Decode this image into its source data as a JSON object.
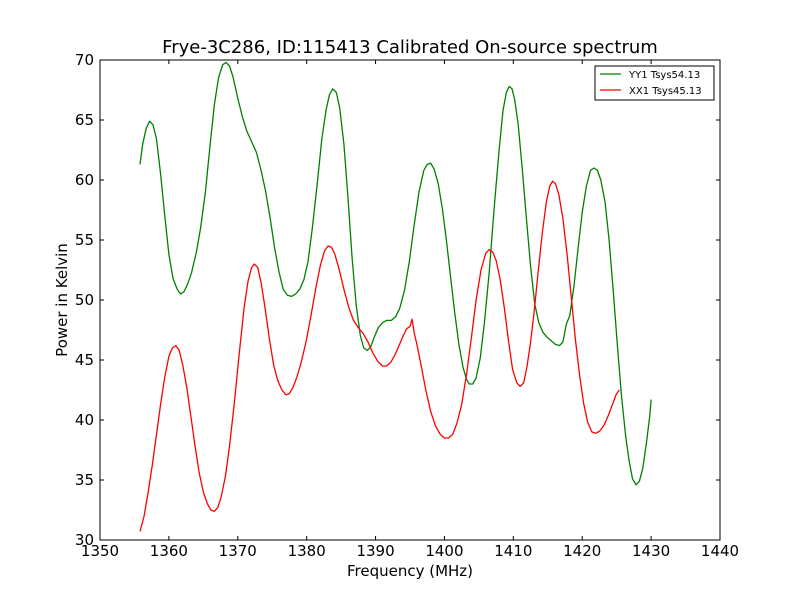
{
  "chart_data": {
    "type": "line",
    "title": "Frye-3C286, ID:115413 Calibrated On-source spectrum",
    "xlabel": "Frequency (MHz)",
    "ylabel": "Power in Kelvin",
    "xlim": [
      1350,
      1440
    ],
    "ylim": [
      30,
      70
    ],
    "xticks": [
      1350,
      1360,
      1370,
      1380,
      1390,
      1400,
      1410,
      1420,
      1430,
      1440
    ],
    "yticks": [
      30,
      35,
      40,
      45,
      50,
      55,
      60,
      65,
      70
    ],
    "grid": false,
    "legend_position": "top-right",
    "series": [
      {
        "name": "YY1 Tsys54.13",
        "color": "#008000",
        "points": [
          [
            1355.8,
            61.3
          ],
          [
            1356.2,
            63.0
          ],
          [
            1356.7,
            64.3
          ],
          [
            1357.2,
            64.9
          ],
          [
            1357.7,
            64.6
          ],
          [
            1358.2,
            63.4
          ],
          [
            1358.8,
            60.5
          ],
          [
            1359.4,
            57.0
          ],
          [
            1360.0,
            53.8
          ],
          [
            1360.6,
            51.8
          ],
          [
            1361.2,
            50.9
          ],
          [
            1361.7,
            50.5
          ],
          [
            1362.2,
            50.7
          ],
          [
            1362.7,
            51.3
          ],
          [
            1363.3,
            52.3
          ],
          [
            1364.0,
            54.0
          ],
          [
            1364.6,
            56.0
          ],
          [
            1365.3,
            59.0
          ],
          [
            1366.0,
            63.0
          ],
          [
            1366.6,
            66.3
          ],
          [
            1367.2,
            68.5
          ],
          [
            1367.8,
            69.6
          ],
          [
            1368.3,
            69.8
          ],
          [
            1368.8,
            69.5
          ],
          [
            1369.3,
            68.6
          ],
          [
            1370.0,
            66.8
          ],
          [
            1370.7,
            65.2
          ],
          [
            1371.3,
            64.1
          ],
          [
            1372.0,
            63.2
          ],
          [
            1372.7,
            62.3
          ],
          [
            1373.3,
            61.0
          ],
          [
            1374.0,
            59.2
          ],
          [
            1374.7,
            56.8
          ],
          [
            1375.3,
            54.5
          ],
          [
            1376.0,
            52.3
          ],
          [
            1376.6,
            50.9
          ],
          [
            1377.2,
            50.4
          ],
          [
            1377.8,
            50.3
          ],
          [
            1378.4,
            50.5
          ],
          [
            1379.0,
            50.9
          ],
          [
            1379.6,
            51.7
          ],
          [
            1380.2,
            53.2
          ],
          [
            1380.8,
            55.9
          ],
          [
            1381.5,
            59.5
          ],
          [
            1382.2,
            63.4
          ],
          [
            1382.8,
            65.8
          ],
          [
            1383.3,
            67.1
          ],
          [
            1383.8,
            67.6
          ],
          [
            1384.3,
            67.3
          ],
          [
            1384.8,
            66.0
          ],
          [
            1385.4,
            63.0
          ],
          [
            1386.0,
            58.5
          ],
          [
            1386.6,
            53.5
          ],
          [
            1387.2,
            49.5
          ],
          [
            1387.8,
            47.0
          ],
          [
            1388.3,
            46.0
          ],
          [
            1388.8,
            45.8
          ],
          [
            1389.3,
            46.1
          ],
          [
            1389.8,
            46.9
          ],
          [
            1390.4,
            47.7
          ],
          [
            1391.0,
            48.1
          ],
          [
            1391.6,
            48.3
          ],
          [
            1392.3,
            48.3
          ],
          [
            1392.9,
            48.6
          ],
          [
            1393.5,
            49.3
          ],
          [
            1394.2,
            50.8
          ],
          [
            1394.9,
            53.2
          ],
          [
            1395.6,
            56.2
          ],
          [
            1396.3,
            59.0
          ],
          [
            1397.0,
            60.8
          ],
          [
            1397.5,
            61.3
          ],
          [
            1398.0,
            61.4
          ],
          [
            1398.5,
            60.9
          ],
          [
            1399.1,
            59.7
          ],
          [
            1399.7,
            57.6
          ],
          [
            1400.3,
            54.9
          ],
          [
            1400.9,
            51.9
          ],
          [
            1401.5,
            48.9
          ],
          [
            1402.1,
            46.3
          ],
          [
            1402.7,
            44.4
          ],
          [
            1403.2,
            43.4
          ],
          [
            1403.6,
            43.0
          ],
          [
            1404.1,
            43.0
          ],
          [
            1404.6,
            43.5
          ],
          [
            1405.2,
            45.2
          ],
          [
            1405.8,
            48.1
          ],
          [
            1406.5,
            52.3
          ],
          [
            1407.2,
            57.5
          ],
          [
            1407.9,
            62.3
          ],
          [
            1408.5,
            65.8
          ],
          [
            1409.0,
            67.3
          ],
          [
            1409.4,
            67.8
          ],
          [
            1409.8,
            67.6
          ],
          [
            1410.2,
            66.7
          ],
          [
            1410.7,
            64.6
          ],
          [
            1411.3,
            60.9
          ],
          [
            1411.9,
            56.8
          ],
          [
            1412.5,
            52.8
          ],
          [
            1413.1,
            49.7
          ],
          [
            1413.7,
            48.1
          ],
          [
            1414.3,
            47.3
          ],
          [
            1414.9,
            46.9
          ],
          [
            1415.5,
            46.6
          ],
          [
            1416.1,
            46.3
          ],
          [
            1416.7,
            46.2
          ],
          [
            1417.2,
            46.5
          ],
          [
            1417.7,
            48.0
          ],
          [
            1418.2,
            48.7
          ],
          [
            1418.8,
            51.2
          ],
          [
            1419.4,
            54.3
          ],
          [
            1420.0,
            57.3
          ],
          [
            1420.6,
            59.5
          ],
          [
            1421.2,
            60.8
          ],
          [
            1421.7,
            61.0
          ],
          [
            1422.2,
            60.8
          ],
          [
            1422.7,
            60.0
          ],
          [
            1423.3,
            58.2
          ],
          [
            1423.9,
            55.0
          ],
          [
            1424.5,
            50.8
          ],
          [
            1425.1,
            46.2
          ],
          [
            1425.7,
            42.0
          ],
          [
            1426.3,
            38.7
          ],
          [
            1426.8,
            36.6
          ],
          [
            1427.3,
            35.1
          ],
          [
            1427.8,
            34.6
          ],
          [
            1428.3,
            34.9
          ],
          [
            1428.8,
            36.0
          ],
          [
            1429.3,
            38.0
          ],
          [
            1429.8,
            40.3
          ],
          [
            1430.0,
            41.7
          ]
        ]
      },
      {
        "name": "XX1 Tsys45.13",
        "color": "#ff0000",
        "points": [
          [
            1355.8,
            30.7
          ],
          [
            1356.4,
            32.0
          ],
          [
            1357.0,
            34.0
          ],
          [
            1357.6,
            36.3
          ],
          [
            1358.2,
            38.8
          ],
          [
            1358.8,
            41.3
          ],
          [
            1359.4,
            43.6
          ],
          [
            1360.0,
            45.3
          ],
          [
            1360.5,
            46.0
          ],
          [
            1361.0,
            46.2
          ],
          [
            1361.5,
            45.8
          ],
          [
            1362.0,
            44.6
          ],
          [
            1362.6,
            42.7
          ],
          [
            1363.2,
            40.3
          ],
          [
            1363.8,
            37.8
          ],
          [
            1364.4,
            35.6
          ],
          [
            1365.0,
            34.0
          ],
          [
            1365.6,
            33.0
          ],
          [
            1366.1,
            32.5
          ],
          [
            1366.6,
            32.4
          ],
          [
            1367.1,
            32.7
          ],
          [
            1367.6,
            33.6
          ],
          [
            1368.2,
            35.3
          ],
          [
            1368.8,
            37.8
          ],
          [
            1369.5,
            41.4
          ],
          [
            1370.2,
            45.5
          ],
          [
            1370.9,
            49.3
          ],
          [
            1371.5,
            51.6
          ],
          [
            1372.0,
            52.7
          ],
          [
            1372.4,
            53.0
          ],
          [
            1372.9,
            52.7
          ],
          [
            1373.4,
            51.4
          ],
          [
            1374.0,
            49.2
          ],
          [
            1374.6,
            46.7
          ],
          [
            1375.2,
            44.6
          ],
          [
            1375.8,
            43.3
          ],
          [
            1376.4,
            42.5
          ],
          [
            1377.0,
            42.1
          ],
          [
            1377.5,
            42.2
          ],
          [
            1378.0,
            42.7
          ],
          [
            1378.6,
            43.6
          ],
          [
            1379.2,
            44.8
          ],
          [
            1379.9,
            46.5
          ],
          [
            1380.6,
            48.6
          ],
          [
            1381.3,
            50.9
          ],
          [
            1382.0,
            52.9
          ],
          [
            1382.6,
            54.1
          ],
          [
            1383.1,
            54.5
          ],
          [
            1383.6,
            54.4
          ],
          [
            1384.1,
            53.8
          ],
          [
            1384.7,
            52.6
          ],
          [
            1385.4,
            50.9
          ],
          [
            1386.1,
            49.4
          ],
          [
            1386.8,
            48.3
          ],
          [
            1387.5,
            47.7
          ],
          [
            1388.2,
            47.2
          ],
          [
            1388.9,
            46.5
          ],
          [
            1389.6,
            45.6
          ],
          [
            1390.3,
            44.9
          ],
          [
            1391.0,
            44.5
          ],
          [
            1391.6,
            44.5
          ],
          [
            1392.2,
            44.8
          ],
          [
            1392.8,
            45.4
          ],
          [
            1393.4,
            46.2
          ],
          [
            1394.0,
            47.0
          ],
          [
            1394.5,
            47.6
          ],
          [
            1395.0,
            47.8
          ],
          [
            1395.3,
            48.4
          ],
          [
            1395.6,
            47.3
          ],
          [
            1396.0,
            46.3
          ],
          [
            1396.6,
            44.6
          ],
          [
            1397.3,
            42.5
          ],
          [
            1398.0,
            40.7
          ],
          [
            1398.7,
            39.5
          ],
          [
            1399.4,
            38.8
          ],
          [
            1400.0,
            38.5
          ],
          [
            1400.6,
            38.5
          ],
          [
            1401.2,
            38.8
          ],
          [
            1401.8,
            39.7
          ],
          [
            1402.5,
            41.3
          ],
          [
            1403.2,
            43.8
          ],
          [
            1403.9,
            46.8
          ],
          [
            1404.6,
            50.0
          ],
          [
            1405.3,
            52.5
          ],
          [
            1406.0,
            53.9
          ],
          [
            1406.5,
            54.2
          ],
          [
            1407.0,
            54.0
          ],
          [
            1407.5,
            53.3
          ],
          [
            1408.1,
            51.7
          ],
          [
            1408.7,
            49.3
          ],
          [
            1409.3,
            46.6
          ],
          [
            1409.9,
            44.2
          ],
          [
            1410.5,
            43.1
          ],
          [
            1411.0,
            42.8
          ],
          [
            1411.5,
            43.1
          ],
          [
            1412.0,
            44.5
          ],
          [
            1412.5,
            46.5
          ],
          [
            1413.0,
            48.9
          ],
          [
            1413.6,
            52.3
          ],
          [
            1414.2,
            55.6
          ],
          [
            1414.8,
            58.2
          ],
          [
            1415.3,
            59.5
          ],
          [
            1415.7,
            59.9
          ],
          [
            1416.1,
            59.7
          ],
          [
            1416.6,
            58.8
          ],
          [
            1417.2,
            56.8
          ],
          [
            1417.8,
            53.8
          ],
          [
            1418.4,
            50.3
          ],
          [
            1419.0,
            46.8
          ],
          [
            1419.6,
            43.8
          ],
          [
            1420.2,
            41.4
          ],
          [
            1420.8,
            39.8
          ],
          [
            1421.4,
            39.0
          ],
          [
            1422.0,
            38.9
          ],
          [
            1422.6,
            39.1
          ],
          [
            1423.2,
            39.6
          ],
          [
            1423.8,
            40.4
          ],
          [
            1424.4,
            41.3
          ],
          [
            1424.9,
            42.1
          ],
          [
            1425.4,
            42.5
          ]
        ]
      }
    ]
  }
}
